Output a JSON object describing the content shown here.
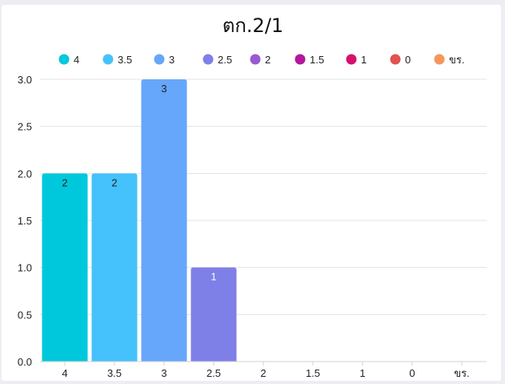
{
  "chart_data": {
    "type": "bar",
    "title": "ตก.2/1",
    "categories": [
      "4",
      "3.5",
      "3",
      "2.5",
      "2",
      "1.5",
      "1",
      "0",
      "ขร."
    ],
    "values": [
      2,
      2,
      3,
      1,
      0,
      0,
      0,
      0,
      0
    ],
    "data_labels": [
      "2",
      "2",
      "3",
      "1",
      "",
      "",
      "",
      "",
      ""
    ],
    "colors": [
      "#00c8dc",
      "#45c2fb",
      "#66a6fb",
      "#7f7fe8",
      "#9b59d0",
      "#b5179e",
      "#d6116b",
      "#e35151",
      "#f5975a"
    ],
    "ylim": [
      0,
      3
    ],
    "yticks": [
      "0.0",
      "0.5",
      "1.0",
      "1.5",
      "2.0",
      "2.5",
      "3.0"
    ],
    "legend": {
      "position": "top",
      "entries": [
        "4",
        "3.5",
        "3",
        "2.5",
        "2",
        "1.5",
        "1",
        "0",
        "ขร."
      ]
    },
    "grid": true
  }
}
